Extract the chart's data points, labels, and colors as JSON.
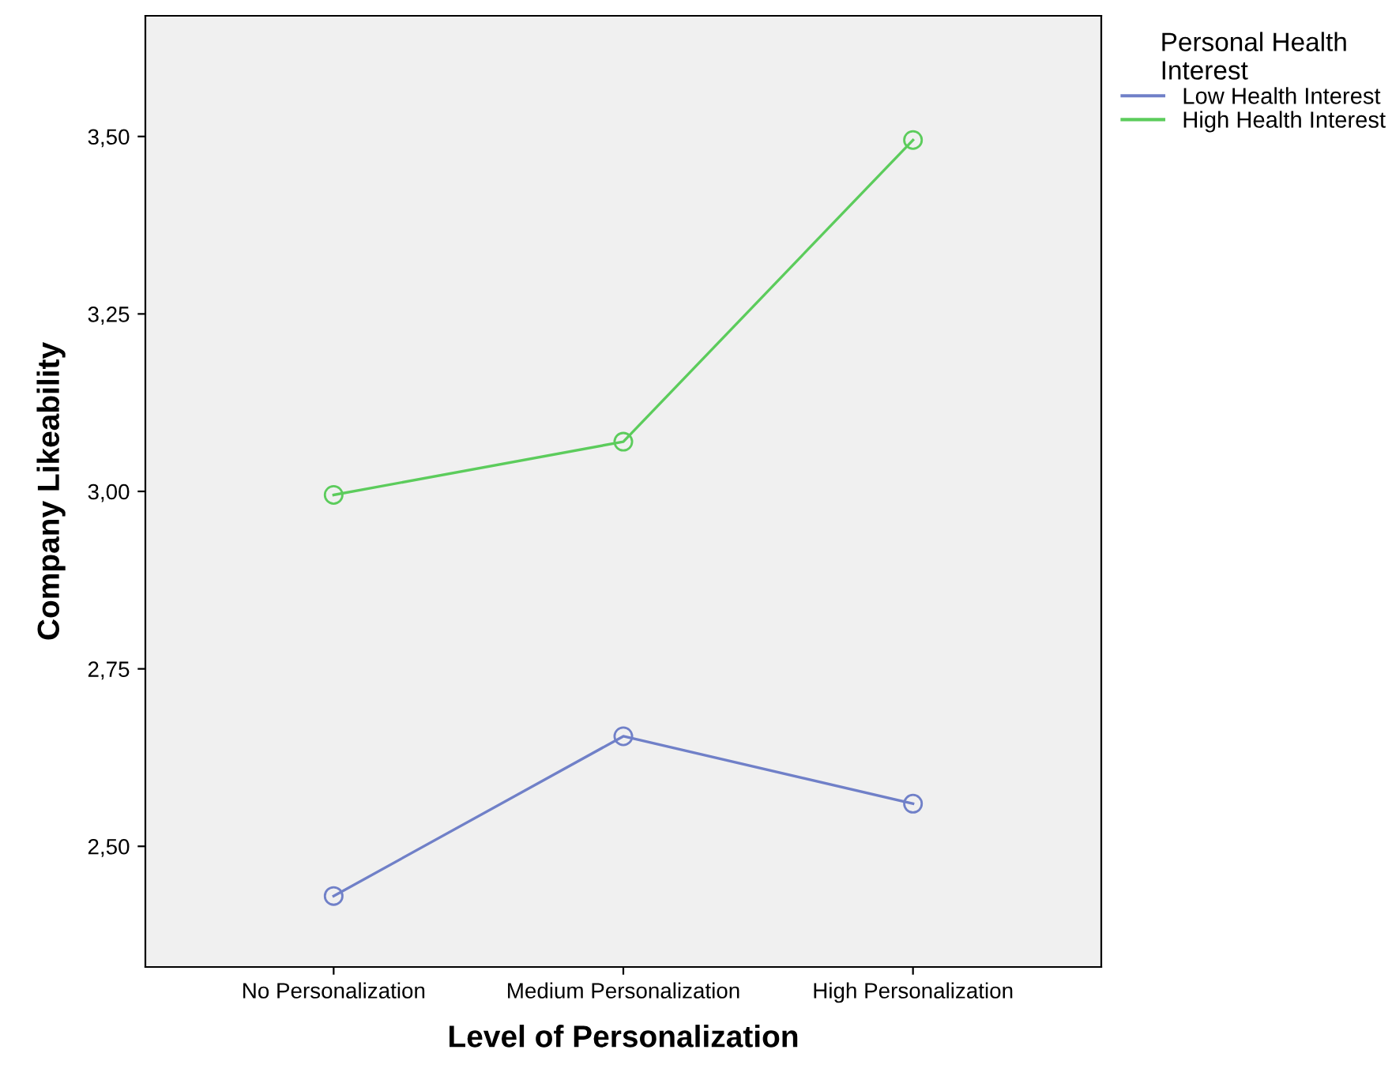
{
  "chart_data": {
    "type": "line",
    "xlabel": "Level of Personalization",
    "ylabel": "Company Likeability",
    "legend_title": "Personal Health\nInterest",
    "categories": [
      "No Personalization",
      "Medium Personalization",
      "High Personalization"
    ],
    "series": [
      {
        "name": "Low Health Interest",
        "color": "#7080c8",
        "values": [
          2.43,
          2.655,
          2.56
        ]
      },
      {
        "name": "High Health Interest",
        "color": "#5ccc5c",
        "values": [
          2.995,
          3.07,
          3.495
        ]
      }
    ],
    "ylim": [
      2.33,
      3.67
    ],
    "yticks": [
      {
        "value": 2.5,
        "label": "2,50"
      },
      {
        "value": 2.75,
        "label": "2,75"
      },
      {
        "value": 3.0,
        "label": "3,00"
      },
      {
        "value": 3.25,
        "label": "3,25"
      },
      {
        "value": 3.5,
        "label": "3,50"
      }
    ],
    "marker": "circle",
    "line_style": "solid",
    "legend": "top right",
    "grid": false
  }
}
